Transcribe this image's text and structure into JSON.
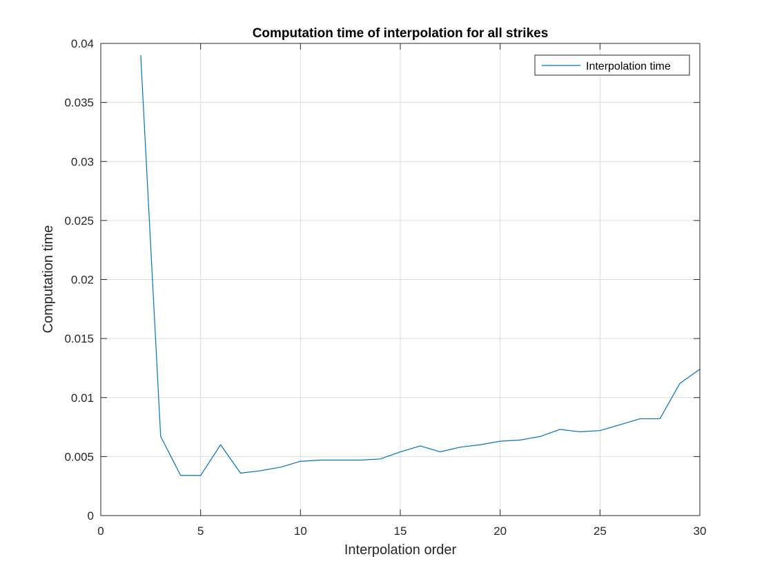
{
  "chart_data": {
    "type": "line",
    "title": "Computation time of interpolation for all strikes",
    "xlabel": "Interpolation order",
    "ylabel": "Computation time",
    "xlim": [
      0,
      30
    ],
    "ylim": [
      0,
      0.04
    ],
    "xticks": [
      0,
      5,
      10,
      15,
      20,
      25,
      30
    ],
    "xtick_labels": [
      "0",
      "5",
      "10",
      "15",
      "20",
      "25",
      "30"
    ],
    "yticks": [
      0,
      0.005,
      0.01,
      0.015,
      0.02,
      0.025,
      0.03,
      0.035,
      0.04
    ],
    "ytick_labels": [
      "0",
      "0.005",
      "0.01",
      "0.015",
      "0.02",
      "0.025",
      "0.03",
      "0.035",
      "0.04"
    ],
    "grid": true,
    "legend_position": "top-right",
    "series": [
      {
        "name": "Interpolation time",
        "color": "#0072BD",
        "x": [
          2,
          3,
          4,
          5,
          6,
          7,
          8,
          9,
          10,
          11,
          12,
          13,
          14,
          15,
          16,
          17,
          18,
          19,
          20,
          21,
          22,
          23,
          24,
          25,
          26,
          27,
          28,
          29,
          30
        ],
        "y": [
          0.039,
          0.0067,
          0.0034,
          0.0034,
          0.006,
          0.0036,
          0.0038,
          0.0041,
          0.0046,
          0.0047,
          0.0047,
          0.0047,
          0.0048,
          0.0054,
          0.0059,
          0.0054,
          0.0058,
          0.006,
          0.0063,
          0.0064,
          0.0067,
          0.0073,
          0.0071,
          0.0072,
          0.0077,
          0.0082,
          0.0082,
          0.0112,
          0.0124
        ]
      }
    ]
  }
}
